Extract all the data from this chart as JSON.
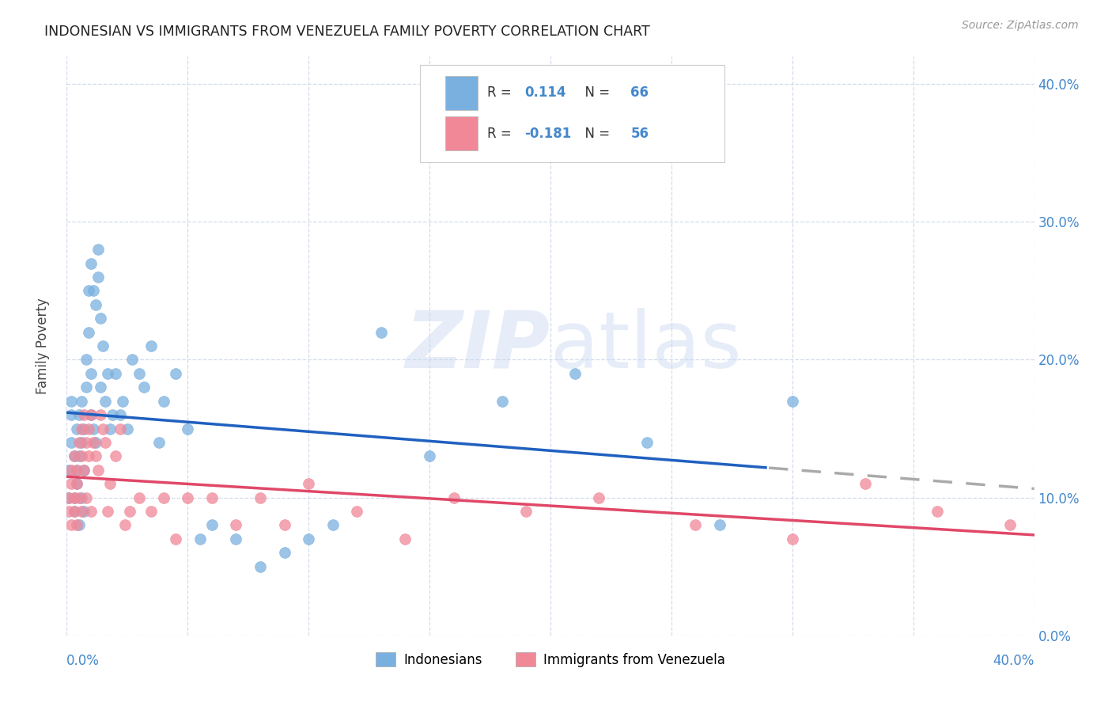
{
  "title": "INDONESIAN VS IMMIGRANTS FROM VENEZUELA FAMILY POVERTY CORRELATION CHART",
  "source": "Source: ZipAtlas.com",
  "ylabel": "Family Poverty",
  "watermark": "ZIPatlas",
  "legend_entries": [
    {
      "label": "Indonesians",
      "color": "#a8c8f0",
      "R": "0.114",
      "N": "66"
    },
    {
      "label": "Immigrants from Venezuela",
      "color": "#f5a8b8",
      "R": "-0.181",
      "N": "56"
    }
  ],
  "indonesian_x": [
    0.001,
    0.001,
    0.002,
    0.002,
    0.002,
    0.003,
    0.003,
    0.003,
    0.004,
    0.004,
    0.004,
    0.005,
    0.005,
    0.005,
    0.006,
    0.006,
    0.006,
    0.007,
    0.007,
    0.007,
    0.008,
    0.008,
    0.009,
    0.009,
    0.01,
    0.01,
    0.01,
    0.011,
    0.011,
    0.012,
    0.012,
    0.013,
    0.013,
    0.014,
    0.014,
    0.015,
    0.016,
    0.017,
    0.018,
    0.019,
    0.02,
    0.022,
    0.023,
    0.025,
    0.027,
    0.03,
    0.032,
    0.035,
    0.038,
    0.04,
    0.045,
    0.05,
    0.055,
    0.06,
    0.07,
    0.08,
    0.09,
    0.1,
    0.11,
    0.13,
    0.15,
    0.18,
    0.21,
    0.24,
    0.27,
    0.3
  ],
  "indonesian_y": [
    0.12,
    0.1,
    0.14,
    0.17,
    0.16,
    0.09,
    0.13,
    0.1,
    0.12,
    0.15,
    0.11,
    0.08,
    0.13,
    0.16,
    0.1,
    0.14,
    0.17,
    0.09,
    0.12,
    0.15,
    0.2,
    0.18,
    0.22,
    0.25,
    0.16,
    0.19,
    0.27,
    0.15,
    0.25,
    0.24,
    0.14,
    0.26,
    0.28,
    0.23,
    0.18,
    0.21,
    0.17,
    0.19,
    0.15,
    0.16,
    0.19,
    0.16,
    0.17,
    0.15,
    0.2,
    0.19,
    0.18,
    0.21,
    0.14,
    0.17,
    0.19,
    0.15,
    0.07,
    0.08,
    0.07,
    0.05,
    0.06,
    0.07,
    0.08,
    0.22,
    0.13,
    0.17,
    0.19,
    0.14,
    0.08,
    0.17
  ],
  "venezuela_x": [
    0.001,
    0.001,
    0.002,
    0.002,
    0.002,
    0.003,
    0.003,
    0.003,
    0.004,
    0.004,
    0.004,
    0.005,
    0.005,
    0.006,
    0.006,
    0.006,
    0.007,
    0.007,
    0.008,
    0.008,
    0.009,
    0.009,
    0.01,
    0.01,
    0.011,
    0.012,
    0.013,
    0.014,
    0.015,
    0.016,
    0.017,
    0.018,
    0.02,
    0.022,
    0.024,
    0.026,
    0.03,
    0.035,
    0.04,
    0.045,
    0.05,
    0.06,
    0.07,
    0.08,
    0.09,
    0.1,
    0.12,
    0.14,
    0.16,
    0.19,
    0.22,
    0.26,
    0.3,
    0.33,
    0.36,
    0.39
  ],
  "venezuela_y": [
    0.1,
    0.09,
    0.12,
    0.11,
    0.08,
    0.13,
    0.1,
    0.09,
    0.11,
    0.08,
    0.12,
    0.1,
    0.14,
    0.09,
    0.13,
    0.15,
    0.16,
    0.12,
    0.14,
    0.1,
    0.15,
    0.13,
    0.16,
    0.09,
    0.14,
    0.13,
    0.12,
    0.16,
    0.15,
    0.14,
    0.09,
    0.11,
    0.13,
    0.15,
    0.08,
    0.09,
    0.1,
    0.09,
    0.1,
    0.07,
    0.1,
    0.1,
    0.08,
    0.1,
    0.08,
    0.11,
    0.09,
    0.07,
    0.1,
    0.09,
    0.1,
    0.08,
    0.07,
    0.11,
    0.09,
    0.08
  ],
  "x_min": 0.0,
  "x_max": 0.4,
  "y_min": 0.0,
  "y_max": 0.42,
  "indonesian_color": "#7ab0e0",
  "venezuela_color": "#f08898",
  "indonesian_line_color": "#2060c0",
  "venezuela_line_color": "#e04868",
  "trend_line_dash_color": "#aaaaaa",
  "background_color": "#ffffff",
  "grid_color": "#c8d4e8",
  "tick_label_color": "#4488cc",
  "title_color": "#222222",
  "watermark_color": "#c8d8f0",
  "source_color": "#999999"
}
